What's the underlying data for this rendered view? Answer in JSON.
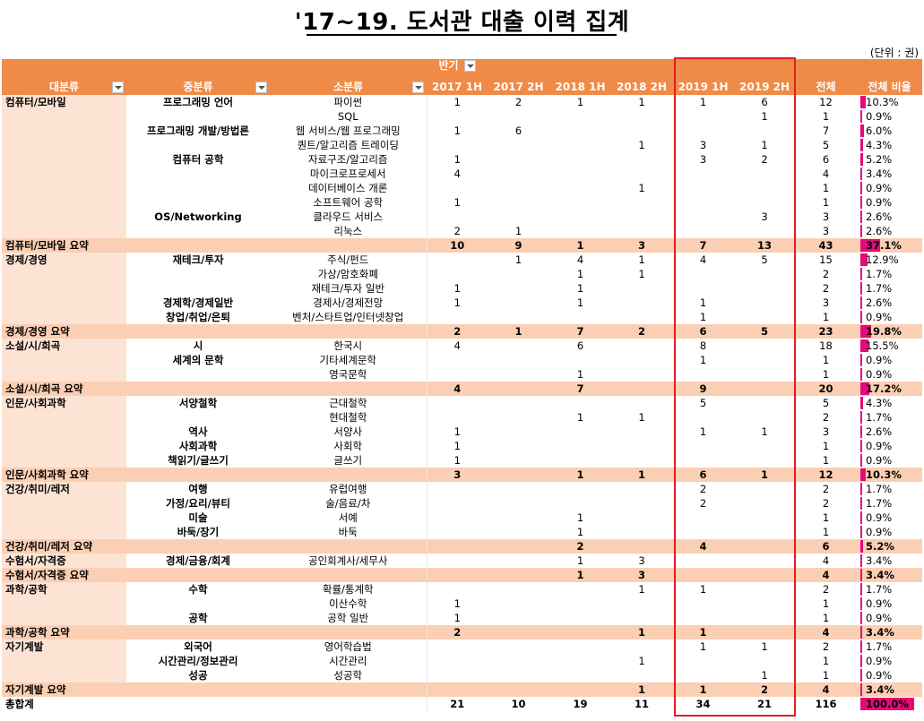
{
  "title": "'17~19. 도서관 대출 이력 집계",
  "unit": "(단위 : 권)",
  "header": {
    "half_label": "반기",
    "col_category": "대분류",
    "col_mid": "중분류",
    "col_sub": "소분류",
    "periods": [
      "2017 1H",
      "2017 2H",
      "2018 1H",
      "2018 2H",
      "2019 1H",
      "2019 2H"
    ],
    "col_total": "전체",
    "col_ratio": "전체 비율"
  },
  "highlight_color": "#e31c23",
  "bar_color": "#e6097a",
  "rows": [
    {
      "type": "row",
      "cat": "컴퓨터/모바일",
      "mid": "프로그래밍 언어",
      "sub": "파이썬",
      "v": [
        "1",
        "2",
        "1",
        "1",
        "1",
        "6"
      ],
      "total": "12",
      "ratio": "10.3%",
      "frac": 0.103
    },
    {
      "type": "row",
      "cat": "",
      "mid": "",
      "sub": "SQL",
      "v": [
        "",
        "",
        "",
        "",
        "",
        "1"
      ],
      "total": "1",
      "ratio": "0.9%",
      "frac": 0.009
    },
    {
      "type": "row",
      "cat": "",
      "mid": "프로그래밍 개발/방법론",
      "sub": "웹 서비스/웹 프로그래밍",
      "v": [
        "1",
        "6",
        "",
        "",
        "",
        ""
      ],
      "total": "7",
      "ratio": "6.0%",
      "frac": 0.06
    },
    {
      "type": "row",
      "cat": "",
      "mid": "",
      "sub": "퀀트/알고리즘 트레이딩",
      "v": [
        "",
        "",
        "",
        "1",
        "3",
        "1"
      ],
      "total": "5",
      "ratio": "4.3%",
      "frac": 0.043
    },
    {
      "type": "row",
      "cat": "",
      "mid": "컴퓨터 공학",
      "sub": "자료구조/알고리즘",
      "v": [
        "1",
        "",
        "",
        "",
        "3",
        "2"
      ],
      "total": "6",
      "ratio": "5.2%",
      "frac": 0.052
    },
    {
      "type": "row",
      "cat": "",
      "mid": "",
      "sub": "마이크로프로세서",
      "v": [
        "4",
        "",
        "",
        "",
        "",
        ""
      ],
      "total": "4",
      "ratio": "3.4%",
      "frac": 0.034
    },
    {
      "type": "row",
      "cat": "",
      "mid": "",
      "sub": "데이터베이스 개론",
      "v": [
        "",
        "",
        "",
        "1",
        "",
        ""
      ],
      "total": "1",
      "ratio": "0.9%",
      "frac": 0.009
    },
    {
      "type": "row",
      "cat": "",
      "mid": "",
      "sub": "소프트웨어 공학",
      "v": [
        "1",
        "",
        "",
        "",
        "",
        ""
      ],
      "total": "1",
      "ratio": "0.9%",
      "frac": 0.009
    },
    {
      "type": "row",
      "cat": "",
      "mid": "OS/Networking",
      "sub": "클라우드 서비스",
      "v": [
        "",
        "",
        "",
        "",
        "",
        "3"
      ],
      "total": "3",
      "ratio": "2.6%",
      "frac": 0.026
    },
    {
      "type": "row",
      "cat": "",
      "mid": "",
      "sub": "리눅스",
      "v": [
        "2",
        "1",
        "",
        "",
        "",
        ""
      ],
      "total": "3",
      "ratio": "2.6%",
      "frac": 0.026
    },
    {
      "type": "subtotal",
      "cat": "컴퓨터/모바일 요약",
      "mid": "",
      "sub": "",
      "v": [
        "10",
        "9",
        "1",
        "3",
        "7",
        "13"
      ],
      "total": "43",
      "ratio": "37.1%",
      "frac": 0.371
    },
    {
      "type": "row",
      "cat": "경제/경영",
      "mid": "재테크/투자",
      "sub": "주식/펀드",
      "v": [
        "",
        "1",
        "4",
        "1",
        "4",
        "5"
      ],
      "total": "15",
      "ratio": "12.9%",
      "frac": 0.129
    },
    {
      "type": "row",
      "cat": "",
      "mid": "",
      "sub": "가상/암호화폐",
      "v": [
        "",
        "",
        "1",
        "1",
        "",
        ""
      ],
      "total": "2",
      "ratio": "1.7%",
      "frac": 0.017
    },
    {
      "type": "row",
      "cat": "",
      "mid": "",
      "sub": "재테크/투자 일반",
      "v": [
        "1",
        "",
        "1",
        "",
        "",
        ""
      ],
      "total": "2",
      "ratio": "1.7%",
      "frac": 0.017
    },
    {
      "type": "row",
      "cat": "",
      "mid": "경제학/경제일반",
      "sub": "경제사/경제전망",
      "v": [
        "1",
        "",
        "1",
        "",
        "1",
        ""
      ],
      "total": "3",
      "ratio": "2.6%",
      "frac": 0.026
    },
    {
      "type": "row",
      "cat": "",
      "mid": "창업/취업/은퇴",
      "sub": "벤처/스타트업/인터넷창업",
      "v": [
        "",
        "",
        "",
        "",
        "1",
        ""
      ],
      "total": "1",
      "ratio": "0.9%",
      "frac": 0.009
    },
    {
      "type": "subtotal",
      "cat": "경제/경영 요약",
      "mid": "",
      "sub": "",
      "v": [
        "2",
        "1",
        "7",
        "2",
        "6",
        "5"
      ],
      "total": "23",
      "ratio": "19.8%",
      "frac": 0.198
    },
    {
      "type": "row",
      "cat": "소설/시/희곡",
      "mid": "시",
      "sub": "한국시",
      "v": [
        "4",
        "",
        "6",
        "",
        "8",
        ""
      ],
      "total": "18",
      "ratio": "15.5%",
      "frac": 0.155
    },
    {
      "type": "row",
      "cat": "",
      "mid": "세계의 문학",
      "sub": "기타세계문학",
      "v": [
        "",
        "",
        "",
        "",
        "1",
        ""
      ],
      "total": "1",
      "ratio": "0.9%",
      "frac": 0.009
    },
    {
      "type": "row",
      "cat": "",
      "mid": "",
      "sub": "영국문학",
      "v": [
        "",
        "",
        "1",
        "",
        "",
        ""
      ],
      "total": "1",
      "ratio": "0.9%",
      "frac": 0.009
    },
    {
      "type": "subtotal",
      "cat": "소설/시/희곡 요약",
      "mid": "",
      "sub": "",
      "v": [
        "4",
        "",
        "7",
        "",
        "9",
        ""
      ],
      "total": "20",
      "ratio": "17.2%",
      "frac": 0.172
    },
    {
      "type": "row",
      "cat": "인문/사회과학",
      "mid": "서양철학",
      "sub": "근대철학",
      "v": [
        "",
        "",
        "",
        "",
        "5",
        ""
      ],
      "total": "5",
      "ratio": "4.3%",
      "frac": 0.043
    },
    {
      "type": "row",
      "cat": "",
      "mid": "",
      "sub": "현대철학",
      "v": [
        "",
        "",
        "1",
        "1",
        "",
        ""
      ],
      "total": "2",
      "ratio": "1.7%",
      "frac": 0.017
    },
    {
      "type": "row",
      "cat": "",
      "mid": "역사",
      "sub": "서양사",
      "v": [
        "1",
        "",
        "",
        "",
        "1",
        "1"
      ],
      "total": "3",
      "ratio": "2.6%",
      "frac": 0.026
    },
    {
      "type": "row",
      "cat": "",
      "mid": "사회과학",
      "sub": "사회학",
      "v": [
        "1",
        "",
        "",
        "",
        "",
        ""
      ],
      "total": "1",
      "ratio": "0.9%",
      "frac": 0.009
    },
    {
      "type": "row",
      "cat": "",
      "mid": "책읽기/글쓰기",
      "sub": "글쓰기",
      "v": [
        "1",
        "",
        "",
        "",
        "",
        ""
      ],
      "total": "1",
      "ratio": "0.9%",
      "frac": 0.009
    },
    {
      "type": "subtotal",
      "cat": "인문/사회과학 요약",
      "mid": "",
      "sub": "",
      "v": [
        "3",
        "",
        "1",
        "1",
        "6",
        "1"
      ],
      "total": "12",
      "ratio": "10.3%",
      "frac": 0.103
    },
    {
      "type": "row",
      "cat": "건강/취미/레저",
      "mid": "여행",
      "sub": "유럽여행",
      "v": [
        "",
        "",
        "",
        "",
        "2",
        ""
      ],
      "total": "2",
      "ratio": "1.7%",
      "frac": 0.017
    },
    {
      "type": "row",
      "cat": "",
      "mid": "가정/요리/뷰티",
      "sub": "술/음료/차",
      "v": [
        "",
        "",
        "",
        "",
        "2",
        ""
      ],
      "total": "2",
      "ratio": "1.7%",
      "frac": 0.017
    },
    {
      "type": "row",
      "cat": "",
      "mid": "미술",
      "sub": "서예",
      "v": [
        "",
        "",
        "1",
        "",
        "",
        ""
      ],
      "total": "1",
      "ratio": "0.9%",
      "frac": 0.009
    },
    {
      "type": "row",
      "cat": "",
      "mid": "바둑/장기",
      "sub": "바둑",
      "v": [
        "",
        "",
        "1",
        "",
        "",
        ""
      ],
      "total": "1",
      "ratio": "0.9%",
      "frac": 0.009
    },
    {
      "type": "subtotal",
      "cat": "건강/취미/레저 요약",
      "mid": "",
      "sub": "",
      "v": [
        "",
        "",
        "2",
        "",
        "4",
        ""
      ],
      "total": "6",
      "ratio": "5.2%",
      "frac": 0.052
    },
    {
      "type": "row",
      "cat": "수험서/자격증",
      "mid": "경제/금융/회계",
      "sub": "공인회계사/세무사",
      "v": [
        "",
        "",
        "1",
        "3",
        "",
        ""
      ],
      "total": "4",
      "ratio": "3.4%",
      "frac": 0.034
    },
    {
      "type": "subtotal",
      "cat": "수험서/자격증 요약",
      "mid": "",
      "sub": "",
      "v": [
        "",
        "",
        "1",
        "3",
        "",
        ""
      ],
      "total": "4",
      "ratio": "3.4%",
      "frac": 0.034
    },
    {
      "type": "row",
      "cat": "과학/공학",
      "mid": "수학",
      "sub": "확률/통계학",
      "v": [
        "",
        "",
        "",
        "1",
        "1",
        ""
      ],
      "total": "2",
      "ratio": "1.7%",
      "frac": 0.017
    },
    {
      "type": "row",
      "cat": "",
      "mid": "",
      "sub": "이산수학",
      "v": [
        "1",
        "",
        "",
        "",
        "",
        ""
      ],
      "total": "1",
      "ratio": "0.9%",
      "frac": 0.009
    },
    {
      "type": "row",
      "cat": "",
      "mid": "공학",
      "sub": "공학 일반",
      "v": [
        "1",
        "",
        "",
        "",
        "",
        ""
      ],
      "total": "1",
      "ratio": "0.9%",
      "frac": 0.009
    },
    {
      "type": "subtotal",
      "cat": "과학/공학 요약",
      "mid": "",
      "sub": "",
      "v": [
        "2",
        "",
        "",
        "1",
        "1",
        ""
      ],
      "total": "4",
      "ratio": "3.4%",
      "frac": 0.034
    },
    {
      "type": "row",
      "cat": "자기계발",
      "mid": "외국어",
      "sub": "영어학습법",
      "v": [
        "",
        "",
        "",
        "",
        "1",
        "1"
      ],
      "total": "2",
      "ratio": "1.7%",
      "frac": 0.017
    },
    {
      "type": "row",
      "cat": "",
      "mid": "시간관리/정보관리",
      "sub": "시간관리",
      "v": [
        "",
        "",
        "",
        "1",
        "",
        ""
      ],
      "total": "1",
      "ratio": "0.9%",
      "frac": 0.009
    },
    {
      "type": "row",
      "cat": "",
      "mid": "성공",
      "sub": "성공학",
      "v": [
        "",
        "",
        "",
        "",
        "",
        "1"
      ],
      "total": "1",
      "ratio": "0.9%",
      "frac": 0.009
    },
    {
      "type": "subtotal",
      "cat": "자기계발 요약",
      "mid": "",
      "sub": "",
      "v": [
        "",
        "",
        "",
        "1",
        "1",
        "2"
      ],
      "total": "4",
      "ratio": "3.4%",
      "frac": 0.034
    },
    {
      "type": "grand",
      "cat": "총합계",
      "mid": "",
      "sub": "",
      "v": [
        "21",
        "10",
        "19",
        "11",
        "34",
        "21"
      ],
      "total": "116",
      "ratio": "100.0%",
      "frac": 1.0
    }
  ]
}
